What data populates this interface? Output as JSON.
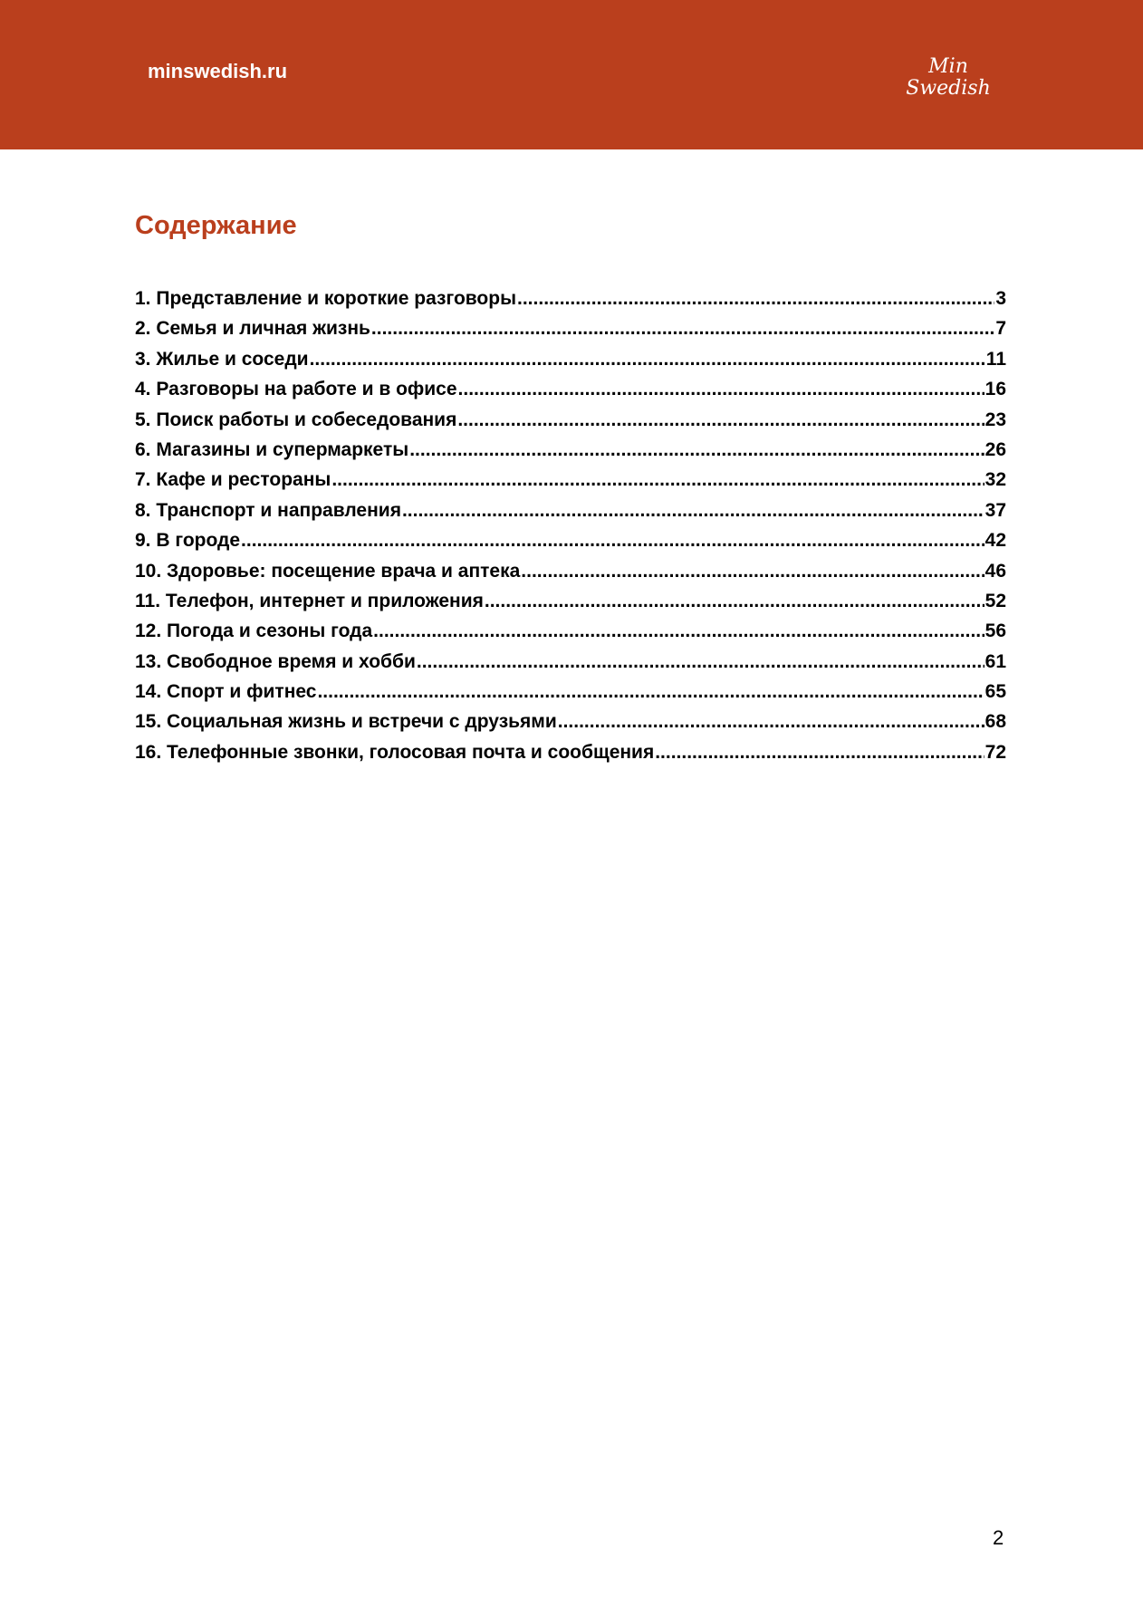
{
  "colors": {
    "brand": "#BA3F1D"
  },
  "header": {
    "site": "minswedish.ru",
    "logo_line1": "Min",
    "logo_line2": "Swedish"
  },
  "title": "Содержание",
  "toc": [
    {
      "label": "1. Представление и короткие разговоры",
      "page": "3"
    },
    {
      "label": "2. Семья и личная жизнь",
      "page": "7"
    },
    {
      "label": "3. Жилье и соседи",
      "page": "11"
    },
    {
      "label": "4. Разговоры на работе и в офисе",
      "page": "16"
    },
    {
      "label": "5. Поиск работы и собеседования",
      "page": "23"
    },
    {
      "label": "6. Магазины и супермаркеты",
      "page": "26"
    },
    {
      "label": "7. Кафе и рестораны",
      "page": "32"
    },
    {
      "label": "8. Транспорт и направления",
      "page": "37"
    },
    {
      "label": "9. В городе",
      "page": "42"
    },
    {
      "label": "10. Здоровье: посещение врача и аптека",
      "page": "46"
    },
    {
      "label": "11. Телефон, интернет и приложения",
      "page": "52"
    },
    {
      "label": "12. Погода и сезоны года",
      "page": "56"
    },
    {
      "label": "13. Свободное время и хобби",
      "page": "61"
    },
    {
      "label": "14. Спорт и фитнес",
      "page": "65"
    },
    {
      "label": "15. Социальная жизнь и встречи с друзьями",
      "page": "68"
    },
    {
      "label": "16. Телефонные звонки, голосовая почта и сообщения",
      "page": "72"
    }
  ],
  "page_number": "2"
}
